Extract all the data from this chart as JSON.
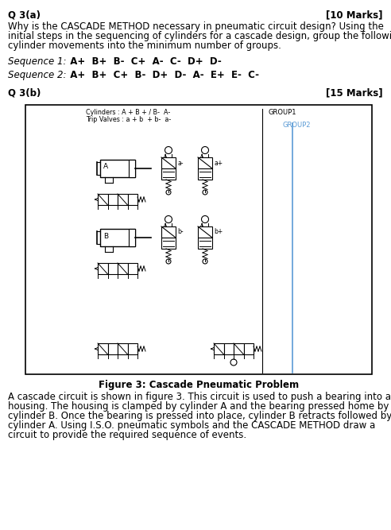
{
  "title_a": "Q 3(a)",
  "marks_a": "[10 Marks]",
  "q3a_text1": "Why is the CASCADE METHOD necessary in pneumatic circuit design? Using the",
  "q3a_text2": "initial steps in the sequencing of cylinders for a cascade design, group the following",
  "q3a_text3": "cylinder movements into the minimum number of groups.",
  "seq1_label": "Sequence 1:",
  "seq1_bold": "  A+  B+  B-  C+  A-  C-  D+  D-",
  "seq2_label": "Sequence 2:",
  "seq2_bold": "  A+  B+  C+  B-  D+  D-  A-  E+  E-  C-",
  "title_b": "Q 3(b)",
  "marks_b": "[15 Marks]",
  "cyl_label": "Cylinders : A + B + / B-  A-",
  "trip_label": "Trip Valves : a + b  + b-  a-",
  "group1_label": "GROUP1",
  "group2_label": "GROUP2",
  "fig_caption": "Figure 3: Cascade Pneumatic Problem",
  "body1": "A cascade circuit is shown in figure 3. This circuit is used to push a bearing into a",
  "body2": "housing. The housing is clamped by cylinder A and the bearing pressed home by",
  "body3": "cylinder B. Once the bearing is pressed into place, cylinder B retracts followed by",
  "body4": "cylinder A. Using I.S.O. pneumatic symbols and the CASCADE METHOD draw a",
  "body5": "circuit to provide the required sequence of events.",
  "bg_color": "#ffffff",
  "blue_color": "#5b9bd5",
  "black": "#000000"
}
